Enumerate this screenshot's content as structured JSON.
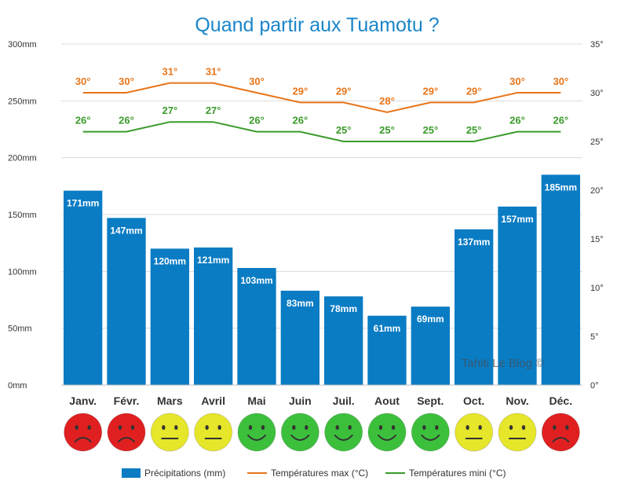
{
  "chart_data": {
    "type": "bar",
    "title": "Quand partir aux Tuamotu ?",
    "categories": [
      "Janv.",
      "Févr.",
      "Mars",
      "Avril",
      "Mai",
      "Juin",
      "Juil.",
      "Aout",
      "Sept.",
      "Oct.",
      "Nov.",
      "Déc."
    ],
    "series": [
      {
        "name": "Précipitations (mm)",
        "type": "bar",
        "axis": "left",
        "color": "#0a7cc4",
        "values": [
          171,
          147,
          120,
          121,
          103,
          83,
          78,
          61,
          69,
          137,
          157,
          185
        ],
        "labels": [
          "171mm",
          "147mm",
          "120mm",
          "121mm",
          "103mm",
          "83mm",
          "78mm",
          "61mm",
          "69mm",
          "137mm",
          "157mm",
          "185mm"
        ]
      },
      {
        "name": "Températures max (°C)",
        "type": "line",
        "axis": "right",
        "color": "#e8751a",
        "values": [
          30,
          30,
          31,
          31,
          30,
          29,
          29,
          28,
          29,
          29,
          30,
          30
        ],
        "labels": [
          "30°",
          "30°",
          "31°",
          "31°",
          "30°",
          "29°",
          "29°",
          "28°",
          "29°",
          "29°",
          "30°",
          "30°"
        ]
      },
      {
        "name": "Températures mini (°C)",
        "type": "line",
        "axis": "right",
        "color": "#3a9a2a",
        "values": [
          26,
          26,
          27,
          27,
          26,
          26,
          25,
          25,
          25,
          25,
          26,
          26
        ],
        "labels": [
          "26°",
          "26°",
          "27°",
          "27°",
          "26°",
          "26°",
          "25°",
          "25°",
          "25°",
          "25°",
          "26°",
          "26°"
        ]
      }
    ],
    "y_left": {
      "ylim": [
        0,
        300
      ],
      "ticks": [
        0,
        50,
        100,
        150,
        200,
        250,
        300
      ],
      "tick_labels": [
        "0mm",
        "50mm",
        "100mm",
        "150mm",
        "200mm",
        "250mm",
        "300mm"
      ]
    },
    "y_right": {
      "ylim": [
        0,
        35
      ],
      "ticks": [
        0,
        5,
        10,
        15,
        20,
        25,
        30,
        35
      ],
      "tick_labels": [
        "0°",
        "5°",
        "10°",
        "15°",
        "20°",
        "25°",
        "30°",
        "35°"
      ]
    },
    "grid": true,
    "legend_position": "bottom",
    "mood": [
      "bad",
      "bad",
      "neutral",
      "neutral",
      "good",
      "good",
      "good",
      "good",
      "good",
      "neutral",
      "neutral",
      "bad"
    ],
    "mood_colors": {
      "good": "#3cc03c",
      "neutral": "#e6e62a",
      "bad": "#e02020"
    },
    "watermark": "Tahiti Le Blog ©"
  }
}
